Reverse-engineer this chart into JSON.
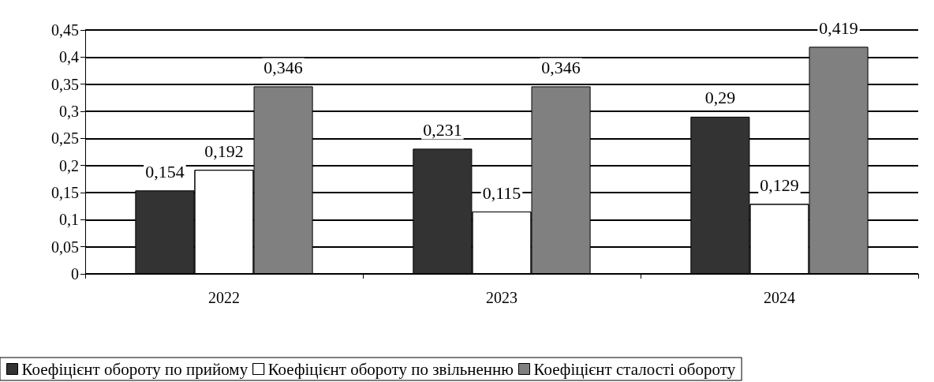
{
  "chart_data": {
    "type": "bar",
    "categories": [
      "2022",
      "2023",
      "2024"
    ],
    "series": [
      {
        "name": "Коефіцієнт обороту по прийому",
        "color": "#333333",
        "values": [
          0.154,
          0.231,
          0.29
        ],
        "value_labels": [
          "0,154",
          "0,231",
          "0,29"
        ]
      },
      {
        "name": "Коефіцієнт обороту по звільненню",
        "color": "#ffffff",
        "values": [
          0.192,
          0.115,
          0.129
        ],
        "value_labels": [
          "0,192",
          "0,115",
          "0,129"
        ]
      },
      {
        "name": "Коефіцієнт сталості обороту",
        "color": "#808080",
        "values": [
          0.346,
          0.346,
          0.419
        ],
        "value_labels": [
          "0,346",
          "0,346",
          "0,419"
        ]
      }
    ],
    "ylim": [
      0,
      0.45
    ],
    "yticks": [
      {
        "value": 0,
        "label": "0"
      },
      {
        "value": 0.05,
        "label": "0,05"
      },
      {
        "value": 0.1,
        "label": "0,1"
      },
      {
        "value": 0.15,
        "label": "0,15"
      },
      {
        "value": 0.2,
        "label": "0,2"
      },
      {
        "value": 0.25,
        "label": "0,25"
      },
      {
        "value": 0.3,
        "label": "0,3"
      },
      {
        "value": 0.35,
        "label": "0,35"
      },
      {
        "value": 0.4,
        "label": "0,4"
      },
      {
        "value": 0.45,
        "label": "0,45"
      }
    ],
    "grid": "y",
    "legend": "bottom"
  }
}
